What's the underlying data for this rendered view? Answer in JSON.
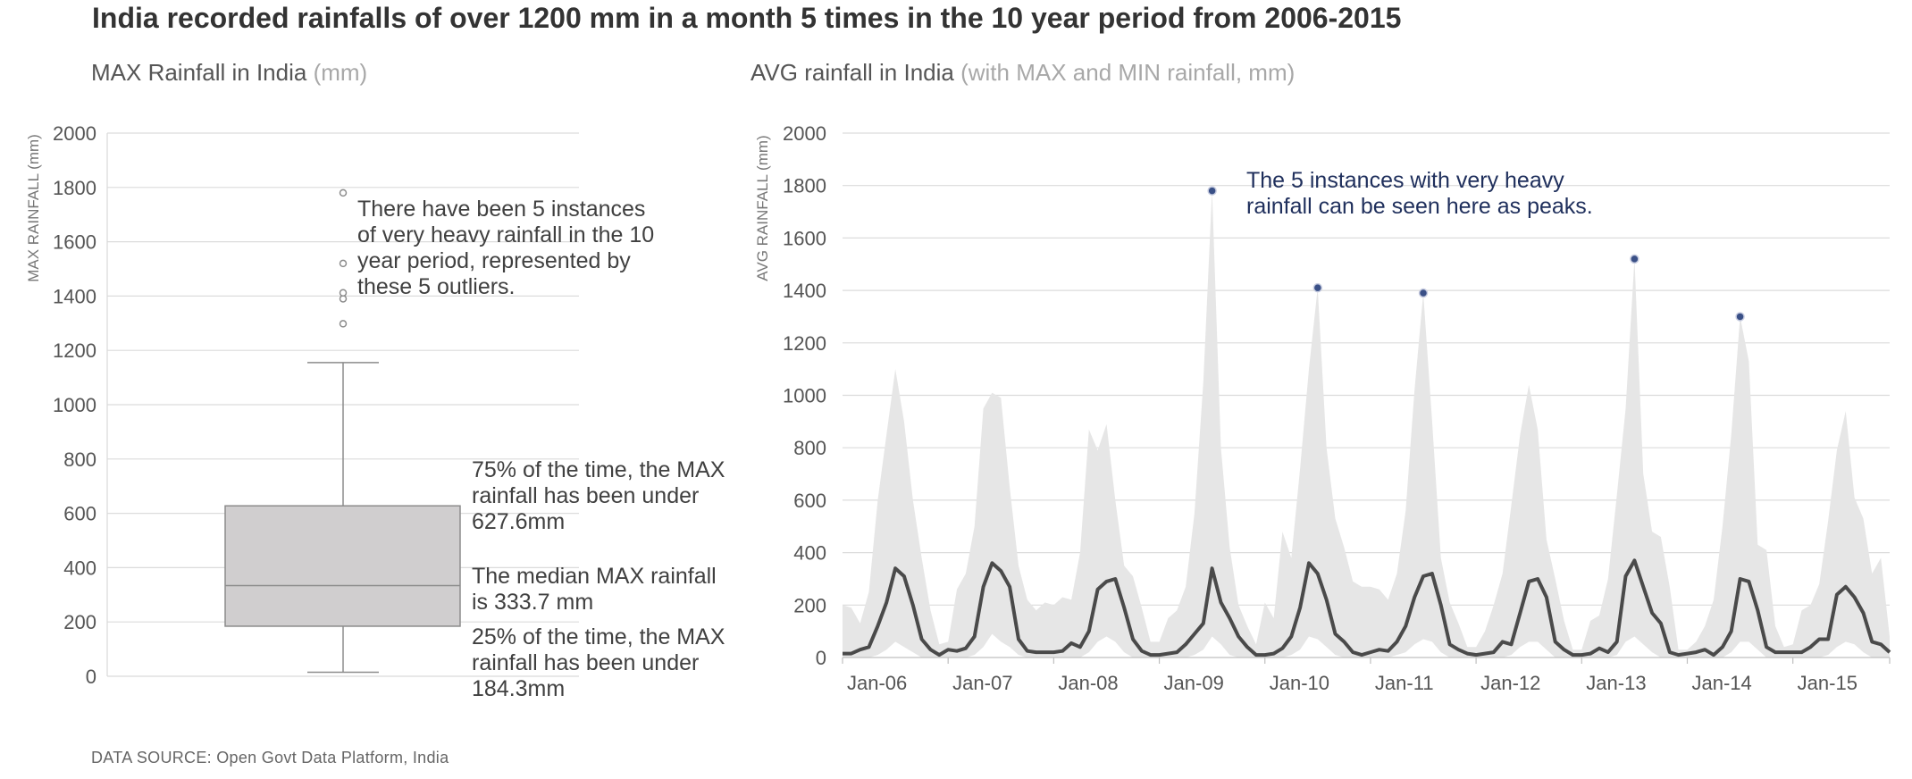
{
  "title": "India recorded rainfalls of over 1200 mm in a month 5 times in the 10 year period from 2006-2015",
  "left_panel": {
    "title": "MAX Rainfall in India",
    "title_unit": "(mm)",
    "ylabel": "MAX RAINFALL (mm)",
    "outlier_note": [
      "There have been 5 instances",
      "of very heavy rainfall in the 10",
      "year period, represented by",
      "these 5 outliers."
    ],
    "q3_note": [
      "75% of the time, the MAX",
      "rainfall has been under",
      "627.6mm"
    ],
    "median_note": [
      "The median MAX rainfall",
      "is 333.7 mm"
    ],
    "q1_note": [
      "25% of the time, the MAX",
      "rainfall has been under",
      "184.3mm"
    ]
  },
  "right_panel": {
    "title": "AVG rainfall in India",
    "title_unit": "(with MAX and MIN rainfall, mm)",
    "ylabel": "AVG RAINFALL (mm)",
    "peak_note": [
      "The 5 instances with very heavy",
      "rainfall can be seen here as peaks."
    ]
  },
  "source": "DATA SOURCE: Open Govt Data Platform, India",
  "colors": {
    "box_fill": "#d0cecf",
    "box_stroke": "#8c8c8c",
    "band": "#e6e6e6",
    "avg_line": "#4a4a4a",
    "peak_marker": "#3a5087",
    "annotation_blue": "#1f2f5c",
    "grid": "#dcdcdc"
  },
  "chart_data": [
    {
      "type": "box",
      "title": "MAX Rainfall in India (mm)",
      "ylabel": "MAX RAINFALL (mm)",
      "ylim": [
        0,
        2000
      ],
      "yticks": [
        0,
        200,
        400,
        600,
        800,
        1000,
        1200,
        1400,
        1600,
        1800,
        2000
      ],
      "grid": true,
      "whisker_low": 15,
      "q1": 184.3,
      "median": 333.7,
      "q3": 627.6,
      "whisker_high": 1155,
      "outliers": [
        1298,
        1390,
        1412,
        1520,
        1780
      ]
    },
    {
      "type": "area",
      "title": "AVG rainfall in India (with MAX and MIN rainfall, mm)",
      "ylabel": "AVG RAINFALL (mm)",
      "ylim": [
        0,
        2000
      ],
      "yticks": [
        0,
        200,
        400,
        600,
        800,
        1000,
        1200,
        1400,
        1600,
        1800,
        2000
      ],
      "grid": true,
      "x_tick_labels": [
        "Jan-06",
        "Jan-07",
        "Jan-08",
        "Jan-09",
        "Jan-10",
        "Jan-11",
        "Jan-12",
        "Jan-13",
        "Jan-14",
        "Jan-15"
      ],
      "x": [
        "Jan-06",
        "Feb-06",
        "Mar-06",
        "Apr-06",
        "May-06",
        "Jun-06",
        "Jul-06",
        "Aug-06",
        "Sep-06",
        "Oct-06",
        "Nov-06",
        "Dec-06",
        "Jan-07",
        "Feb-07",
        "Mar-07",
        "Apr-07",
        "May-07",
        "Jun-07",
        "Jul-07",
        "Aug-07",
        "Sep-07",
        "Oct-07",
        "Nov-07",
        "Dec-07",
        "Jan-08",
        "Feb-08",
        "Mar-08",
        "Apr-08",
        "May-08",
        "Jun-08",
        "Jul-08",
        "Aug-08",
        "Sep-08",
        "Oct-08",
        "Nov-08",
        "Dec-08",
        "Jan-09",
        "Feb-09",
        "Mar-09",
        "Apr-09",
        "May-09",
        "Jun-09",
        "Jul-09",
        "Aug-09",
        "Sep-09",
        "Oct-09",
        "Nov-09",
        "Dec-09",
        "Jan-10",
        "Feb-10",
        "Mar-10",
        "Apr-10",
        "May-10",
        "Jun-10",
        "Jul-10",
        "Aug-10",
        "Sep-10",
        "Oct-10",
        "Nov-10",
        "Dec-10",
        "Jan-11",
        "Feb-11",
        "Mar-11",
        "Apr-11",
        "May-11",
        "Jun-11",
        "Jul-11",
        "Aug-11",
        "Sep-11",
        "Oct-11",
        "Nov-11",
        "Dec-11",
        "Jan-12",
        "Feb-12",
        "Mar-12",
        "Apr-12",
        "May-12",
        "Jun-12",
        "Jul-12",
        "Aug-12",
        "Sep-12",
        "Oct-12",
        "Nov-12",
        "Dec-12",
        "Jan-13",
        "Feb-13",
        "Mar-13",
        "Apr-13",
        "May-13",
        "Jun-13",
        "Jul-13",
        "Aug-13",
        "Sep-13",
        "Oct-13",
        "Nov-13",
        "Dec-13",
        "Jan-14",
        "Feb-14",
        "Mar-14",
        "Apr-14",
        "May-14",
        "Jun-14",
        "Jul-14",
        "Aug-14",
        "Sep-14",
        "Oct-14",
        "Nov-14",
        "Dec-14",
        "Jan-15",
        "Feb-15",
        "Mar-15",
        "Apr-15",
        "May-15",
        "Jun-15",
        "Jul-15",
        "Aug-15",
        "Sep-15",
        "Oct-15",
        "Nov-15",
        "Dec-15"
      ],
      "series": [
        {
          "name": "MAX",
          "values": [
            200,
            190,
            130,
            250,
            600,
            850,
            1100,
            900,
            600,
            380,
            180,
            50,
            60,
            260,
            320,
            500,
            950,
            1010,
            990,
            650,
            350,
            220,
            180,
            210,
            200,
            230,
            220,
            400,
            870,
            790,
            890,
            600,
            350,
            310,
            190,
            60,
            60,
            150,
            180,
            270,
            550,
            1050,
            1780,
            800,
            420,
            200,
            120,
            50,
            210,
            150,
            480,
            380,
            720,
            1100,
            1410,
            800,
            530,
            420,
            290,
            270,
            270,
            260,
            220,
            320,
            560,
            1020,
            1390,
            900,
            380,
            210,
            130,
            40,
            40,
            100,
            200,
            320,
            580,
            850,
            1040,
            870,
            450,
            300,
            140,
            30,
            30,
            140,
            160,
            300,
            620,
            950,
            1520,
            700,
            480,
            460,
            270,
            30,
            30,
            60,
            120,
            220,
            500,
            850,
            1300,
            1130,
            430,
            410,
            120,
            40,
            50,
            180,
            200,
            280,
            520,
            790,
            940,
            610,
            530,
            320,
            380,
            80
          ]
        },
        {
          "name": "AVG",
          "values": [
            15,
            15,
            30,
            40,
            120,
            210,
            340,
            310,
            200,
            70,
            30,
            10,
            30,
            25,
            35,
            80,
            270,
            360,
            330,
            270,
            70,
            25,
            20,
            20,
            20,
            25,
            55,
            40,
            100,
            260,
            290,
            300,
            190,
            70,
            25,
            10,
            10,
            15,
            20,
            50,
            90,
            130,
            340,
            210,
            150,
            80,
            40,
            10,
            10,
            15,
            35,
            80,
            190,
            360,
            320,
            220,
            90,
            60,
            20,
            10,
            20,
            30,
            25,
            60,
            120,
            230,
            310,
            320,
            200,
            50,
            30,
            15,
            10,
            15,
            20,
            60,
            50,
            170,
            290,
            300,
            230,
            60,
            30,
            10,
            10,
            15,
            35,
            20,
            60,
            310,
            370,
            270,
            170,
            130,
            20,
            10,
            15,
            20,
            30,
            10,
            40,
            100,
            300,
            290,
            180,
            40,
            20,
            20,
            20,
            20,
            40,
            70,
            70,
            240,
            270,
            230,
            170,
            60,
            50,
            20
          ]
        },
        {
          "name": "MIN",
          "values": [
            0,
            0,
            0,
            0,
            10,
            30,
            60,
            40,
            20,
            0,
            0,
            0,
            0,
            0,
            0,
            10,
            40,
            90,
            60,
            40,
            10,
            0,
            0,
            0,
            0,
            0,
            0,
            0,
            20,
            60,
            80,
            60,
            20,
            0,
            0,
            0,
            0,
            0,
            0,
            0,
            10,
            30,
            80,
            50,
            10,
            0,
            0,
            0,
            0,
            0,
            0,
            10,
            30,
            80,
            70,
            40,
            10,
            0,
            0,
            0,
            0,
            0,
            0,
            10,
            20,
            50,
            70,
            60,
            20,
            0,
            0,
            0,
            0,
            0,
            0,
            0,
            10,
            40,
            60,
            60,
            30,
            0,
            0,
            0,
            0,
            0,
            0,
            0,
            10,
            60,
            80,
            50,
            20,
            0,
            0,
            0,
            0,
            0,
            0,
            0,
            0,
            20,
            60,
            60,
            30,
            0,
            0,
            0,
            0,
            0,
            0,
            0,
            10,
            40,
            60,
            50,
            20,
            0,
            0,
            0
          ]
        }
      ],
      "peaks": [
        {
          "x": "Jul-09",
          "value": 1780
        },
        {
          "x": "Jul-10",
          "value": 1410
        },
        {
          "x": "Jul-11",
          "value": 1390
        },
        {
          "x": "Jul-13",
          "value": 1520
        },
        {
          "x": "Jul-14",
          "value": 1300
        }
      ]
    }
  ]
}
